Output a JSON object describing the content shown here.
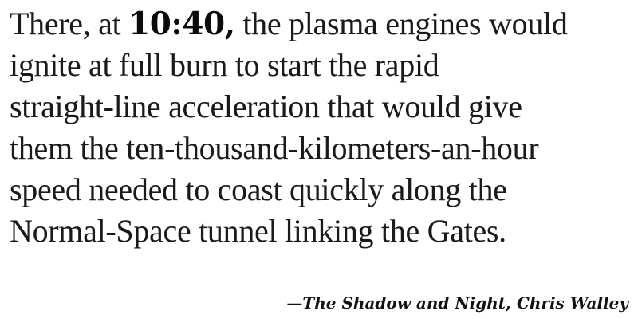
{
  "quote": {
    "line1_before": "There, at ",
    "time": "10:40,",
    "line1_after": " the plasma engines would",
    "line2": "ignite at full burn to start the rapid",
    "line3": "straight-line acceleration that would give",
    "line4": "them the ten-thousand-kilometers-an-hour",
    "line5": "speed needed to coast quickly along the",
    "line6": "Normal-Space tunnel linking the Gates."
  },
  "attribution": {
    "dash": "—",
    "title": "The Shadow and Night",
    "separator": ", ",
    "author": "Chris Walley"
  }
}
